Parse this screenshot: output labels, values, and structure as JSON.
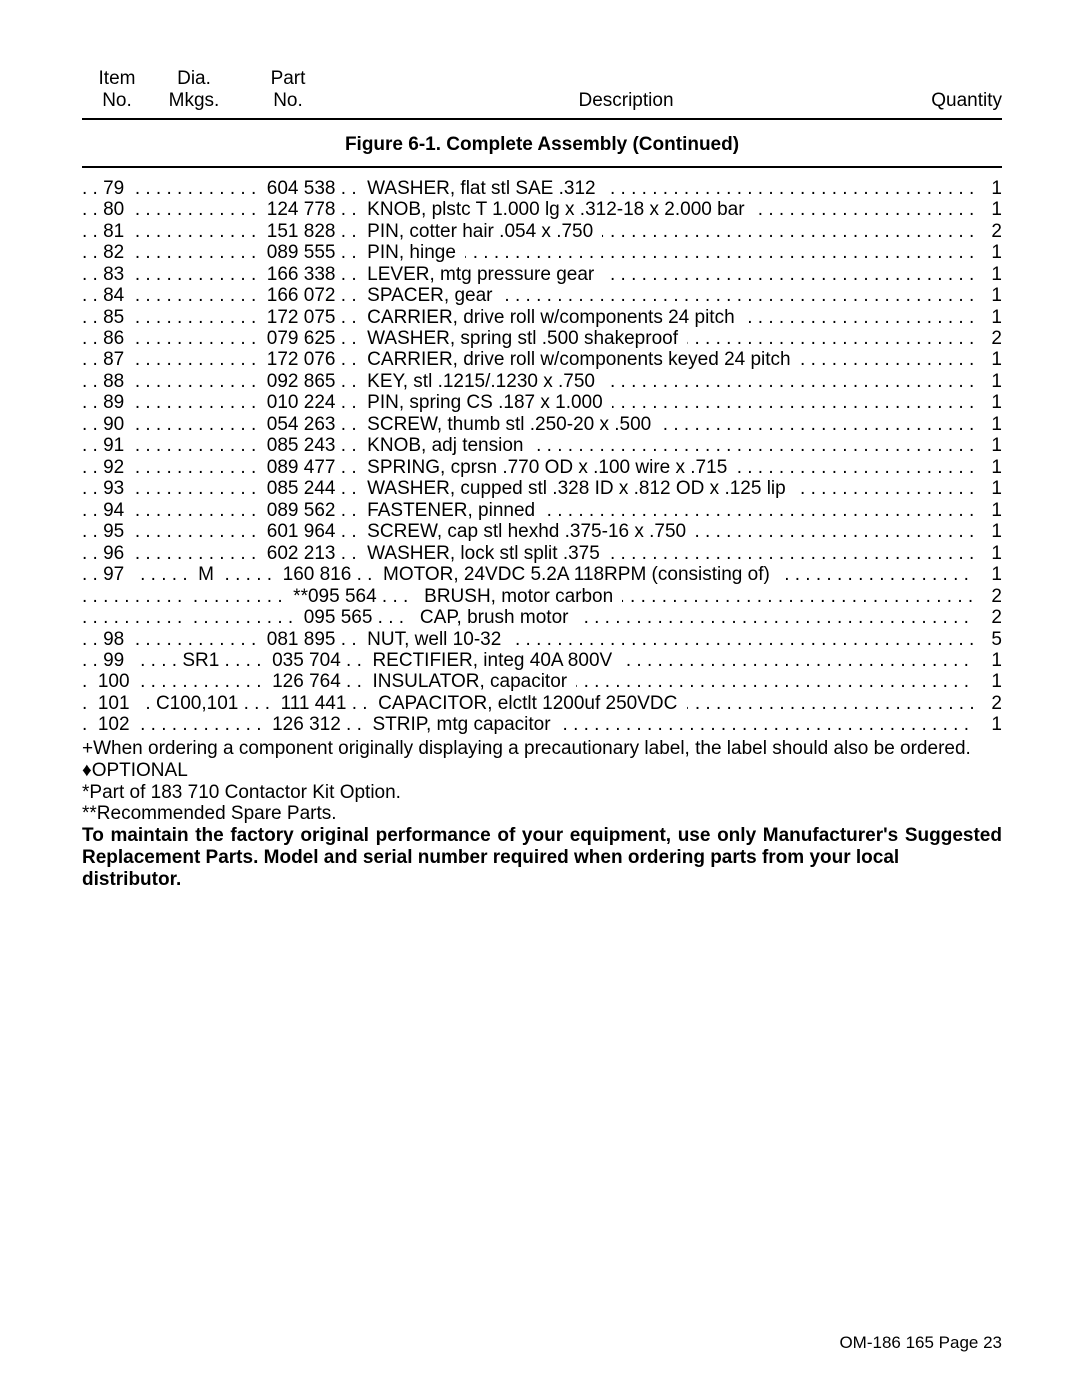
{
  "header": {
    "item_line1": "Item",
    "item_line2": "No.",
    "dia_line1": "Dia.",
    "dia_line2": "Mkgs.",
    "part_line1": "Part",
    "part_line2": "No.",
    "description": "Description",
    "quantity": "Quantity"
  },
  "figure_title": "Figure 6-1. Complete Assembly (Continued)",
  "rows": [
    {
      "item": ". . 79",
      "dia": ". . . . . . . . . . . .",
      "part": "604 538",
      "sep": " . .  ",
      "desc": "WASHER, flat stl SAE .312 ",
      "qty": "1"
    },
    {
      "item": ". . 80",
      "dia": ". . . . . . . . . . . .",
      "part": "124 778",
      "sep": " . .  ",
      "desc": "KNOB, plstc T 1.000 lg x .312-18 x 2.000 bar ",
      "qty": "1"
    },
    {
      "item": ". . 81",
      "dia": ". . . . . . . . . . . .",
      "part": "151 828",
      "sep": " . .  ",
      "desc": "PIN, cotter hair .054 x .750 ",
      "qty": "2"
    },
    {
      "item": ". . 82",
      "dia": ". . . . . . . . . . . .",
      "part": "089 555",
      "sep": " . .  ",
      "desc": "PIN, hinge ",
      "qty": "1"
    },
    {
      "item": ". . 83",
      "dia": ". . . . . . . . . . . .",
      "part": "166 338",
      "sep": " . .  ",
      "desc": "LEVER, mtg pressure gear ",
      "qty": "1"
    },
    {
      "item": ". . 84",
      "dia": ". . . . . . . . . . . .",
      "part": "166 072",
      "sep": " . .  ",
      "desc": "SPACER, gear ",
      "qty": "1"
    },
    {
      "item": ". . 85",
      "dia": ". . . . . . . . . . . .",
      "part": "172 075",
      "sep": " . .  ",
      "desc": "CARRIER, drive roll w/components 24 pitch ",
      "qty": "1"
    },
    {
      "item": ". . 86",
      "dia": ". . . . . . . . . . . .",
      "part": "079 625",
      "sep": " . .  ",
      "desc": "WASHER, spring stl .500 shakeproof ",
      "qty": "2"
    },
    {
      "item": ". . 87",
      "dia": ". . . . . . . . . . . .",
      "part": "172 076",
      "sep": " . .  ",
      "desc": "CARRIER, drive roll w/components keyed 24 pitch ",
      "qty": "1"
    },
    {
      "item": ". . 88",
      "dia": ". . . . . . . . . . . .",
      "part": "092 865",
      "sep": " . .  ",
      "desc": "KEY, stl .1215/.1230 x .750 ",
      "qty": "1"
    },
    {
      "item": ". . 89",
      "dia": ". . . . . . . . . . . .",
      "part": "010 224",
      "sep": " . .  ",
      "desc": "PIN, spring CS .187 x 1.000 ",
      "qty": "1"
    },
    {
      "item": ". . 90",
      "dia": ". . . . . . . . . . . .",
      "part": "054 263",
      "sep": " . .  ",
      "desc": "SCREW, thumb stl .250-20 x .500 ",
      "qty": "1"
    },
    {
      "item": ". . 91",
      "dia": ". . . . . . . . . . . .",
      "part": "085 243",
      "sep": " . .  ",
      "desc": "KNOB, adj tension ",
      "qty": "1"
    },
    {
      "item": ". . 92",
      "dia": ". . . . . . . . . . . .",
      "part": "089 477",
      "sep": " . .  ",
      "desc": "SPRING, cprsn .770 OD x .100 wire x .715 ",
      "qty": "1"
    },
    {
      "item": ". . 93",
      "dia": ". . . . . . . . . . . .",
      "part": "085 244",
      "sep": " . .  ",
      "desc": "WASHER, cupped stl .328 ID x .812 OD x .125 lip ",
      "qty": "1"
    },
    {
      "item": ". . 94",
      "dia": ". . . . . . . . . . . .",
      "part": "089 562",
      "sep": " . .  ",
      "desc": "FASTENER, pinned ",
      "qty": "1"
    },
    {
      "item": ". . 95",
      "dia": ". . . . . . . . . . . .",
      "part": "601 964",
      "sep": " . .  ",
      "desc": "SCREW, cap stl hexhd .375-16 x .750 ",
      "qty": "1"
    },
    {
      "item": ". . 96",
      "dia": ". . . . . . . . . . . .",
      "part": "602 213",
      "sep": " . .  ",
      "desc": "WASHER, lock stl split .375 ",
      "qty": "1"
    },
    {
      "item": ". . 97",
      "dia": " . . . . .  M  . . . . .",
      "part": "160 816",
      "sep": " . .  ",
      "desc": "MOTOR, 24VDC 5.2A 118RPM (consisting of) ",
      "qty": "1"
    },
    {
      "item": ". . . . . . . . . .",
      "dia": ". . . . . . . . .",
      "part": "**095 564",
      "sep": " . . .  ",
      "desc": " BRUSH, motor carbon ",
      "qty": "2"
    },
    {
      "item": ". . . . . . . . . .",
      "dia": ". . . . . . . . . .",
      "part": "095 565",
      "sep": " . . .  ",
      "desc": " CAP, brush motor ",
      "qty": "2"
    },
    {
      "item": ". . 98",
      "dia": ". . . . . . . . . . . .",
      "part": "081 895",
      "sep": " . .  ",
      "desc": "NUT, well 10-32 ",
      "qty": "5"
    },
    {
      "item": ". . 99",
      "dia": " . . . . SR1 . . . .",
      "part": "035 704",
      "sep": " . .  ",
      "desc": "RECTIFIER, integ 40A 800V ",
      "qty": "1"
    },
    {
      "item": ".  100",
      "dia": ". . . . . . . . . . . .",
      "part": "126 764",
      "sep": " . .  ",
      "desc": "INSULATOR, capacitor ",
      "qty": "1"
    },
    {
      "item": ".  101",
      "dia": " . C100,101 . . .",
      "part": "111 441",
      "sep": " . .  ",
      "desc": "CAPACITOR, elctlt 1200uf 250VDC ",
      "qty": "2"
    },
    {
      "item": ".  102",
      "dia": ". . . . . . . . . . . .",
      "part": "126 312",
      "sep": " . .  ",
      "desc": "STRIP, mtg capacitor ",
      "qty": "1"
    }
  ],
  "notes": {
    "plus": "+When ordering a component originally displaying a precautionary label, the label should also be ordered.",
    "optional": "♦OPTIONAL",
    "star1": "*Part of 183 710 Contactor Kit Option.",
    "star2": "**Recommended Spare Parts.",
    "bold1": "To maintain the factory original performance of your equipment, use only Manufacturer's Suggested",
    "bold2": "Replacement Parts. Model and serial number required when ordering parts from your local distributor."
  },
  "footer": "OM-186 165 Page 23"
}
